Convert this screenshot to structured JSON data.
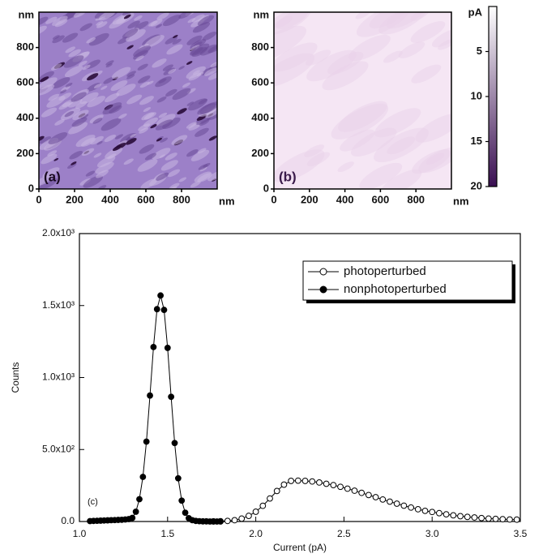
{
  "chart_data": [
    {
      "type": "image",
      "panel_label": "(a)",
      "xlabel": "nm",
      "ylabel": "nm",
      "xlim": [
        0,
        1000
      ],
      "ylim": [
        0,
        1000
      ],
      "xticks": [
        0,
        200,
        400,
        600,
        800
      ],
      "yticks": [
        0,
        200,
        400,
        600,
        800
      ],
      "color": "#9c80c8"
    },
    {
      "type": "image",
      "panel_label": "(b)",
      "xlabel": "nm",
      "ylabel": "nm",
      "xlim": [
        0,
        1000
      ],
      "ylim": [
        0,
        1000
      ],
      "xticks": [
        0,
        200,
        400,
        600,
        800
      ],
      "yticks": [
        0,
        200,
        400,
        600,
        800
      ],
      "color": "#f5e6f4"
    },
    {
      "type": "colorbar",
      "label": "pA",
      "ylim": [
        0,
        20
      ],
      "yticks": [
        5,
        10,
        15,
        20
      ],
      "colors": [
        "#ffffff",
        "#3a0f52"
      ]
    },
    {
      "type": "line",
      "panel_label": "(c)",
      "xlabel": "Current (pA)",
      "ylabel": "Counts",
      "xlim": [
        1.0,
        3.5
      ],
      "ylim": [
        0,
        2000
      ],
      "xticks": [
        {
          "value": 1.0,
          "label": "1.0"
        },
        {
          "value": 1.5,
          "label": "1.5"
        },
        {
          "value": 2.0,
          "label": "2.0"
        },
        {
          "value": 2.5,
          "label": "2.5"
        },
        {
          "value": 3.0,
          "label": "3.0"
        },
        {
          "value": 3.5,
          "label": "3.5"
        }
      ],
      "yticks": [
        {
          "value": 0,
          "label": "0.0"
        },
        {
          "value": 500,
          "label": "5.0x10²"
        },
        {
          "value": 1000,
          "label": "1.0x10³"
        },
        {
          "value": 1500,
          "label": "1.5x10³"
        },
        {
          "value": 2000,
          "label": "2.0x10³"
        }
      ],
      "legend": "upper right",
      "series": [
        {
          "name": "photoperturbed",
          "color": "#000000",
          "marker": "open",
          "x": [
            1.76,
            1.8,
            1.84,
            1.88,
            1.92,
            1.96,
            2.0,
            2.04,
            2.08,
            2.12,
            2.16,
            2.2,
            2.24,
            2.28,
            2.32,
            2.36,
            2.4,
            2.44,
            2.48,
            2.52,
            2.56,
            2.6,
            2.64,
            2.68,
            2.72,
            2.76,
            2.8,
            2.84,
            2.88,
            2.92,
            2.96,
            3.0,
            3.04,
            3.08,
            3.12,
            3.16,
            3.2,
            3.24,
            3.28,
            3.32,
            3.36,
            3.4,
            3.44,
            3.48
          ],
          "values": [
            1,
            2,
            4,
            9,
            20,
            39,
            68,
            109,
            160,
            212,
            256,
            282,
            284,
            282,
            278,
            271,
            262,
            253,
            241,
            228,
            214,
            199,
            184,
            169,
            153,
            138,
            124,
            110,
            97,
            85,
            74,
            66,
            58,
            50,
            43,
            37,
            32,
            28,
            24,
            20,
            18,
            16,
            14,
            13
          ]
        },
        {
          "name": "nonphotoperturbed",
          "color": "#000000",
          "marker": "filled",
          "x": [
            1.06,
            1.08,
            1.1,
            1.12,
            1.14,
            1.16,
            1.18,
            1.2,
            1.22,
            1.24,
            1.26,
            1.28,
            1.3,
            1.32,
            1.34,
            1.36,
            1.38,
            1.4,
            1.42,
            1.44,
            1.46,
            1.48,
            1.5,
            1.52,
            1.54,
            1.56,
            1.58,
            1.6,
            1.62,
            1.64,
            1.66,
            1.68,
            1.7,
            1.72,
            1.74,
            1.76,
            1.78,
            1.8
          ],
          "values": [
            3,
            4,
            5,
            6,
            7,
            8,
            9,
            10,
            11,
            12,
            14,
            17,
            25,
            68,
            155,
            310,
            555,
            875,
            1212,
            1475,
            1570,
            1470,
            1206,
            866,
            545,
            300,
            145,
            61,
            23,
            9,
            4,
            2,
            1,
            1,
            0,
            0,
            0,
            0
          ]
        }
      ]
    }
  ]
}
